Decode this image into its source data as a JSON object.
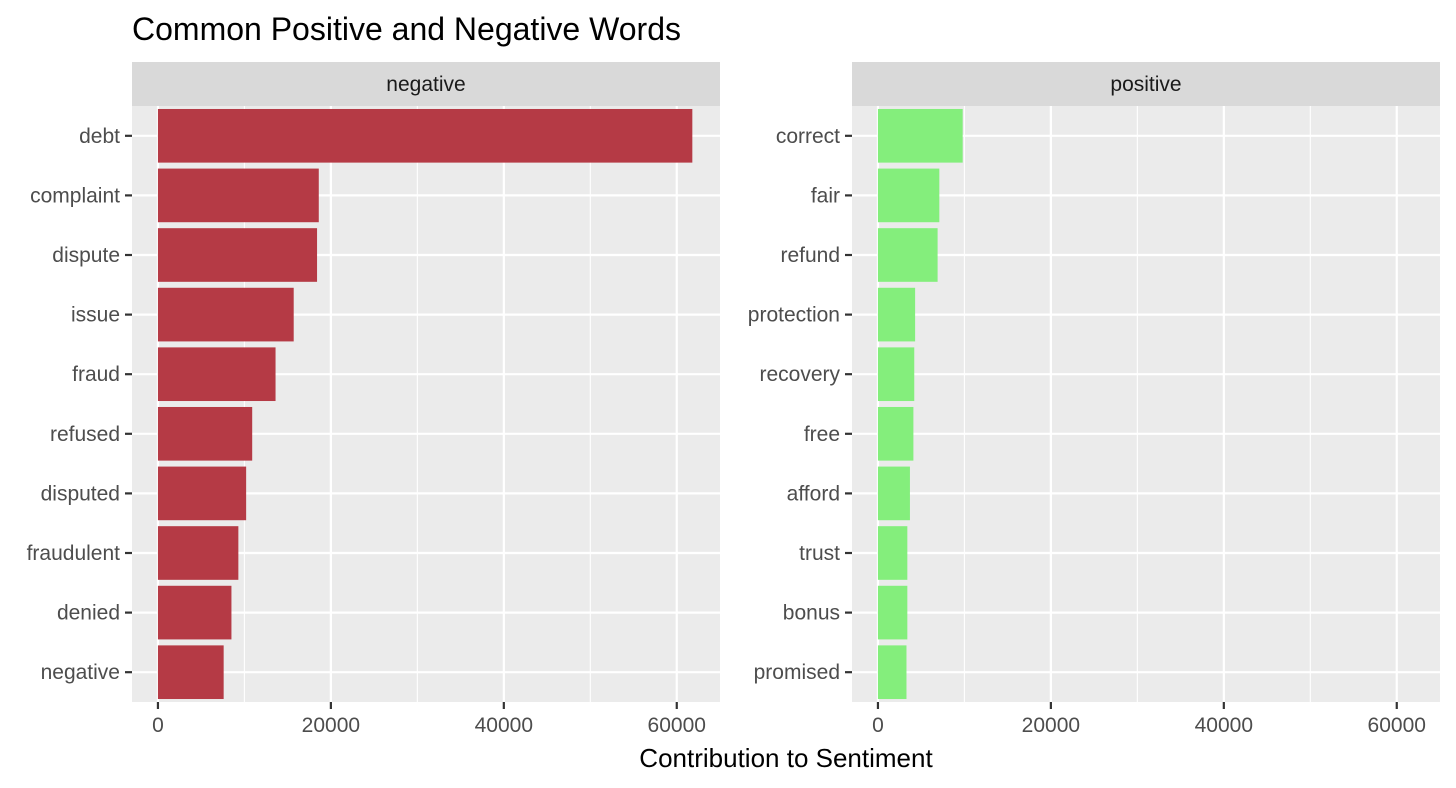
{
  "chart_data": {
    "type": "bar",
    "orientation": "horizontal",
    "title": "Common Positive and Negative Words",
    "xlabel": "Contribution to Sentiment",
    "ylabel": "",
    "xlim": [
      -3000,
      65000
    ],
    "xticks": [
      0,
      20000,
      40000,
      60000
    ],
    "xtick_labels": [
      "0",
      "20000",
      "40000",
      "60000"
    ],
    "grid": true,
    "legend": "none",
    "panels": [
      {
        "label": "negative",
        "color": "#b53a45",
        "categories": [
          "debt",
          "complaint",
          "dispute",
          "issue",
          "fraud",
          "refused",
          "disputed",
          "fraudulent",
          "denied",
          "negative"
        ],
        "values": [
          61800,
          18600,
          18400,
          15700,
          13600,
          10900,
          10200,
          9300,
          8500,
          7600
        ]
      },
      {
        "label": "positive",
        "color": "#84ee7c",
        "categories": [
          "correct",
          "fair",
          "refund",
          "protection",
          "recovery",
          "free",
          "afford",
          "trust",
          "bonus",
          "promised"
        ],
        "values": [
          9800,
          7100,
          6900,
          4300,
          4200,
          4100,
          3700,
          3400,
          3400,
          3300
        ]
      }
    ]
  }
}
